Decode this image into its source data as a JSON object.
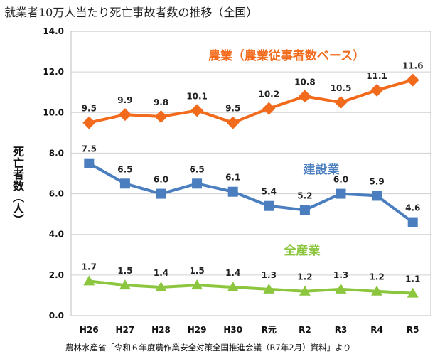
{
  "chart_data": {
    "type": "line",
    "title": "就業者10万人当たり死亡事故者数の推移（全国）",
    "ylabel": "死亡者数（人）",
    "xlabel": "",
    "ylim": [
      0,
      14
    ],
    "ytick_step": 2,
    "ytick_labels": [
      "0.0",
      "2.0",
      "4.0",
      "6.0",
      "8.0",
      "10.0",
      "12.0",
      "14.0"
    ],
    "grid": true,
    "categories": [
      "H26",
      "H27",
      "H28",
      "H29",
      "H30",
      "R元",
      "R2",
      "R3",
      "R4",
      "R5"
    ],
    "series": [
      {
        "name": "農業（農業従事者数ベース）",
        "color": "#f26b1d",
        "marker": "diamond",
        "values": [
          9.5,
          9.9,
          9.8,
          10.1,
          9.5,
          10.2,
          10.8,
          10.5,
          11.1,
          11.6
        ],
        "labels": [
          "9.5",
          "9.9",
          "9.8",
          "10.1",
          "9.5",
          "10.2",
          "10.8",
          "10.5",
          "11.1",
          "11.6"
        ]
      },
      {
        "name": "建設業",
        "color": "#4a7ebf",
        "marker": "square",
        "values": [
          7.5,
          6.5,
          6.0,
          6.5,
          6.1,
          5.4,
          5.2,
          6.0,
          5.9,
          4.6
        ],
        "labels": [
          "7.5",
          "6.5",
          "6.0",
          "6.5",
          "6.1",
          "5.4",
          "5.2",
          "6.0",
          "5.9",
          "4.6"
        ]
      },
      {
        "name": "全産業",
        "color": "#8cc63f",
        "marker": "triangle",
        "values": [
          1.7,
          1.5,
          1.4,
          1.5,
          1.4,
          1.3,
          1.2,
          1.3,
          1.2,
          1.1
        ],
        "labels": [
          "1.7",
          "1.5",
          "1.4",
          "1.5",
          "1.4",
          "1.3",
          "1.2",
          "1.3",
          "1.2",
          "1.1"
        ]
      }
    ]
  },
  "source_note": "農林水産省「令和６年度農作業安全対策全国推進会議（R7年2月）資料」より"
}
